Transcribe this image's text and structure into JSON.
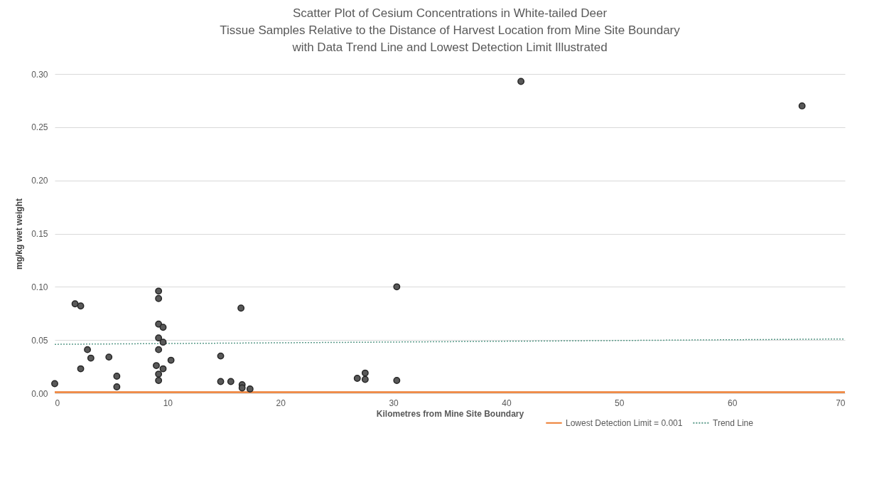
{
  "chart_data": {
    "type": "scatter",
    "title": "Scatter Plot of Cesium Concentrations in White-tailed Deer\nTissue Samples Relative to the Distance of Harvest Location from Mine Site Boundary\nwith Data Trend Line and Lowest Detection Limit Illustrated",
    "xlabel": "Kilometres from Mine Site Boundary",
    "ylabel": "mg/kg wet weight",
    "xlim": [
      0,
      70
    ],
    "xticks": [
      0,
      10,
      20,
      30,
      40,
      50,
      60,
      70
    ],
    "ylim": [
      0,
      0.3
    ],
    "yticks": [
      {
        "value": 0,
        "label": "0.00"
      },
      {
        "value": 0.05,
        "label": "0.05"
      },
      {
        "value": 0.1,
        "label": "0.10"
      },
      {
        "value": 0.15,
        "label": "0.15"
      },
      {
        "value": 0.2,
        "label": "0.20"
      },
      {
        "value": 0.25,
        "label": "0.25"
      },
      {
        "value": 0.3,
        "label": "0.30"
      }
    ],
    "grid": "y",
    "legend": "bottom right",
    "series": [
      {
        "marker": "circle",
        "color": "#595959",
        "x": [
          0,
          1.8,
          2.3,
          2.3,
          2.9,
          3.2,
          4.8,
          5.5,
          5.5,
          9.2,
          9.2,
          9.2,
          9.6,
          9.2,
          9.6,
          9.2,
          9.0,
          9.6,
          9.2,
          9.2,
          10.3,
          14.7,
          14.7,
          15.6,
          16.5,
          16.6,
          16.6,
          17.3,
          26.8,
          27.5,
          27.5,
          30.3,
          30.3,
          41.3,
          66.2
        ],
        "values": [
          0.009,
          0.084,
          0.082,
          0.023,
          0.041,
          0.033,
          0.034,
          0.016,
          0.006,
          0.096,
          0.089,
          0.065,
          0.062,
          0.052,
          0.048,
          0.041,
          0.026,
          0.023,
          0.018,
          0.012,
          0.031,
          0.035,
          0.011,
          0.011,
          0.08,
          0.008,
          0.005,
          0.004,
          0.014,
          0.019,
          0.013,
          0.1,
          0.012,
          0.293,
          0.27
        ]
      },
      {
        "type": "line",
        "name": "Trend Line",
        "color": "#5b9b8a",
        "line_style": "dotted",
        "x": [
          0,
          70
        ],
        "values": [
          0.046,
          0.051
        ]
      }
    ],
    "ref_lines": [
      {
        "axis": "y",
        "value": 0.001,
        "label": "Lowest Detection Limit = 0.001",
        "color": "#ed7d31",
        "line_style": "solid"
      }
    ]
  }
}
